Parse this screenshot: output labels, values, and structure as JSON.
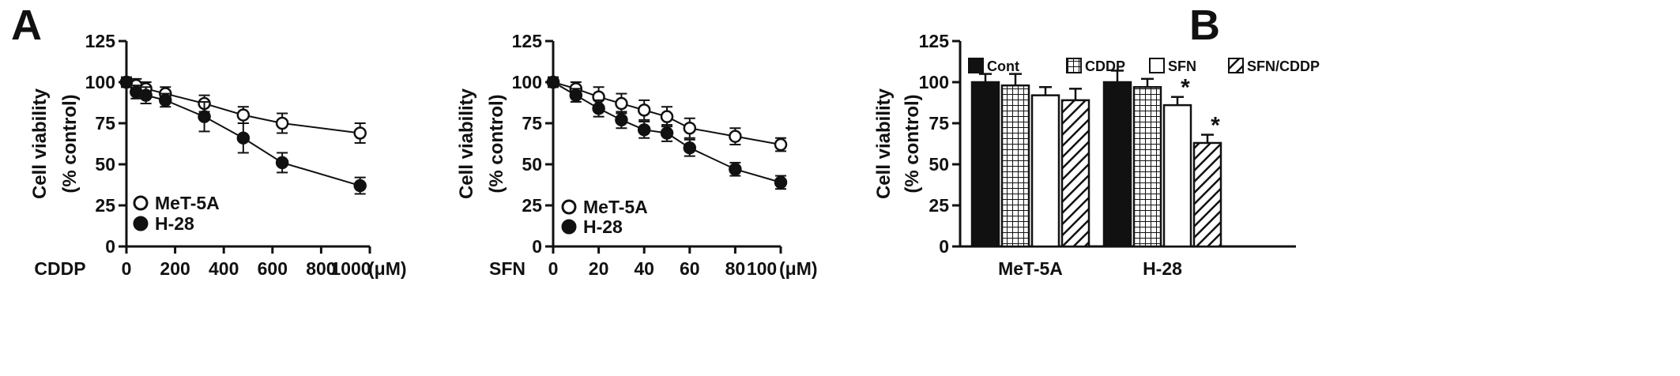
{
  "panel_labels": [
    "A",
    "B"
  ],
  "chart_data": [
    {
      "type": "line",
      "panel": "A",
      "xlabel": "CDDP",
      "x_unit": "(μM)",
      "ylabel": [
        "Cell viability",
        "(% control)"
      ],
      "xlim": [
        0,
        1000
      ],
      "ylim": [
        0,
        125
      ],
      "xticks": [
        0,
        200,
        400,
        600,
        800,
        1000
      ],
      "yticks": [
        0,
        25,
        50,
        75,
        100,
        125
      ],
      "legend_position": "bottom-left",
      "grid": false,
      "series": [
        {
          "name": "MeT-5A",
          "marker": "open-circle",
          "x": [
            0,
            40,
            80,
            160,
            320,
            480,
            640,
            960
          ],
          "y": [
            100,
            98,
            96,
            93,
            87,
            80,
            75,
            69
          ],
          "err": [
            3,
            4,
            4,
            4,
            5,
            5,
            6,
            6
          ]
        },
        {
          "name": "H-28",
          "marker": "filled-circle",
          "x": [
            0,
            40,
            80,
            160,
            320,
            480,
            640,
            960
          ],
          "y": [
            100,
            94,
            92,
            89,
            79,
            66,
            51,
            37
          ],
          "err": [
            3,
            4,
            5,
            4,
            9,
            9,
            6,
            5
          ]
        }
      ]
    },
    {
      "type": "line",
      "panel": "A",
      "xlabel": "SFN",
      "x_unit": "(μM)",
      "ylabel": [
        "Cell viability",
        "(% control)"
      ],
      "xlim": [
        0,
        100
      ],
      "ylim": [
        0,
        125
      ],
      "xticks": [
        0,
        20,
        40,
        60,
        80,
        100
      ],
      "yticks": [
        0,
        25,
        50,
        75,
        100,
        125
      ],
      "legend_position": "bottom-left",
      "grid": false,
      "series": [
        {
          "name": "MeT-5A",
          "marker": "open-circle",
          "x": [
            0,
            10,
            20,
            30,
            40,
            50,
            60,
            80,
            100
          ],
          "y": [
            100,
            96,
            91,
            87,
            83,
            79,
            72,
            67,
            62
          ],
          "err": [
            3,
            4,
            6,
            6,
            6,
            6,
            6,
            5,
            4
          ]
        },
        {
          "name": "H-28",
          "marker": "filled-circle",
          "x": [
            0,
            10,
            20,
            30,
            40,
            50,
            60,
            80,
            100
          ],
          "y": [
            100,
            92,
            84,
            77,
            71,
            69,
            60,
            47,
            39
          ],
          "err": [
            3,
            4,
            5,
            5,
            5,
            5,
            5,
            4,
            4
          ]
        }
      ]
    },
    {
      "type": "bar",
      "panel": "B",
      "ylabel": [
        "Cell viability",
        "(% control)"
      ],
      "ylim": [
        0,
        125
      ],
      "yticks": [
        0,
        25,
        50,
        75,
        100,
        125
      ],
      "categories": [
        "MeT-5A",
        "H-28"
      ],
      "legend_position": "top",
      "grid": false,
      "series": [
        {
          "name": "Cont",
          "pattern": "solid-black",
          "values": [
            100,
            100
          ],
          "err": [
            5,
            7
          ],
          "marks": [
            "",
            ""
          ]
        },
        {
          "name": "CDDP",
          "pattern": "grid",
          "values": [
            98,
            97
          ],
          "err": [
            7,
            5
          ],
          "marks": [
            "",
            ""
          ]
        },
        {
          "name": "SFN",
          "pattern": "white",
          "values": [
            92,
            86
          ],
          "err": [
            5,
            5
          ],
          "marks": [
            "",
            "*"
          ]
        },
        {
          "name": "SFN/CDDP",
          "pattern": "diagonal-hatch",
          "values": [
            89,
            63
          ],
          "err": [
            7,
            5
          ],
          "marks": [
            "",
            "*"
          ]
        }
      ]
    }
  ]
}
